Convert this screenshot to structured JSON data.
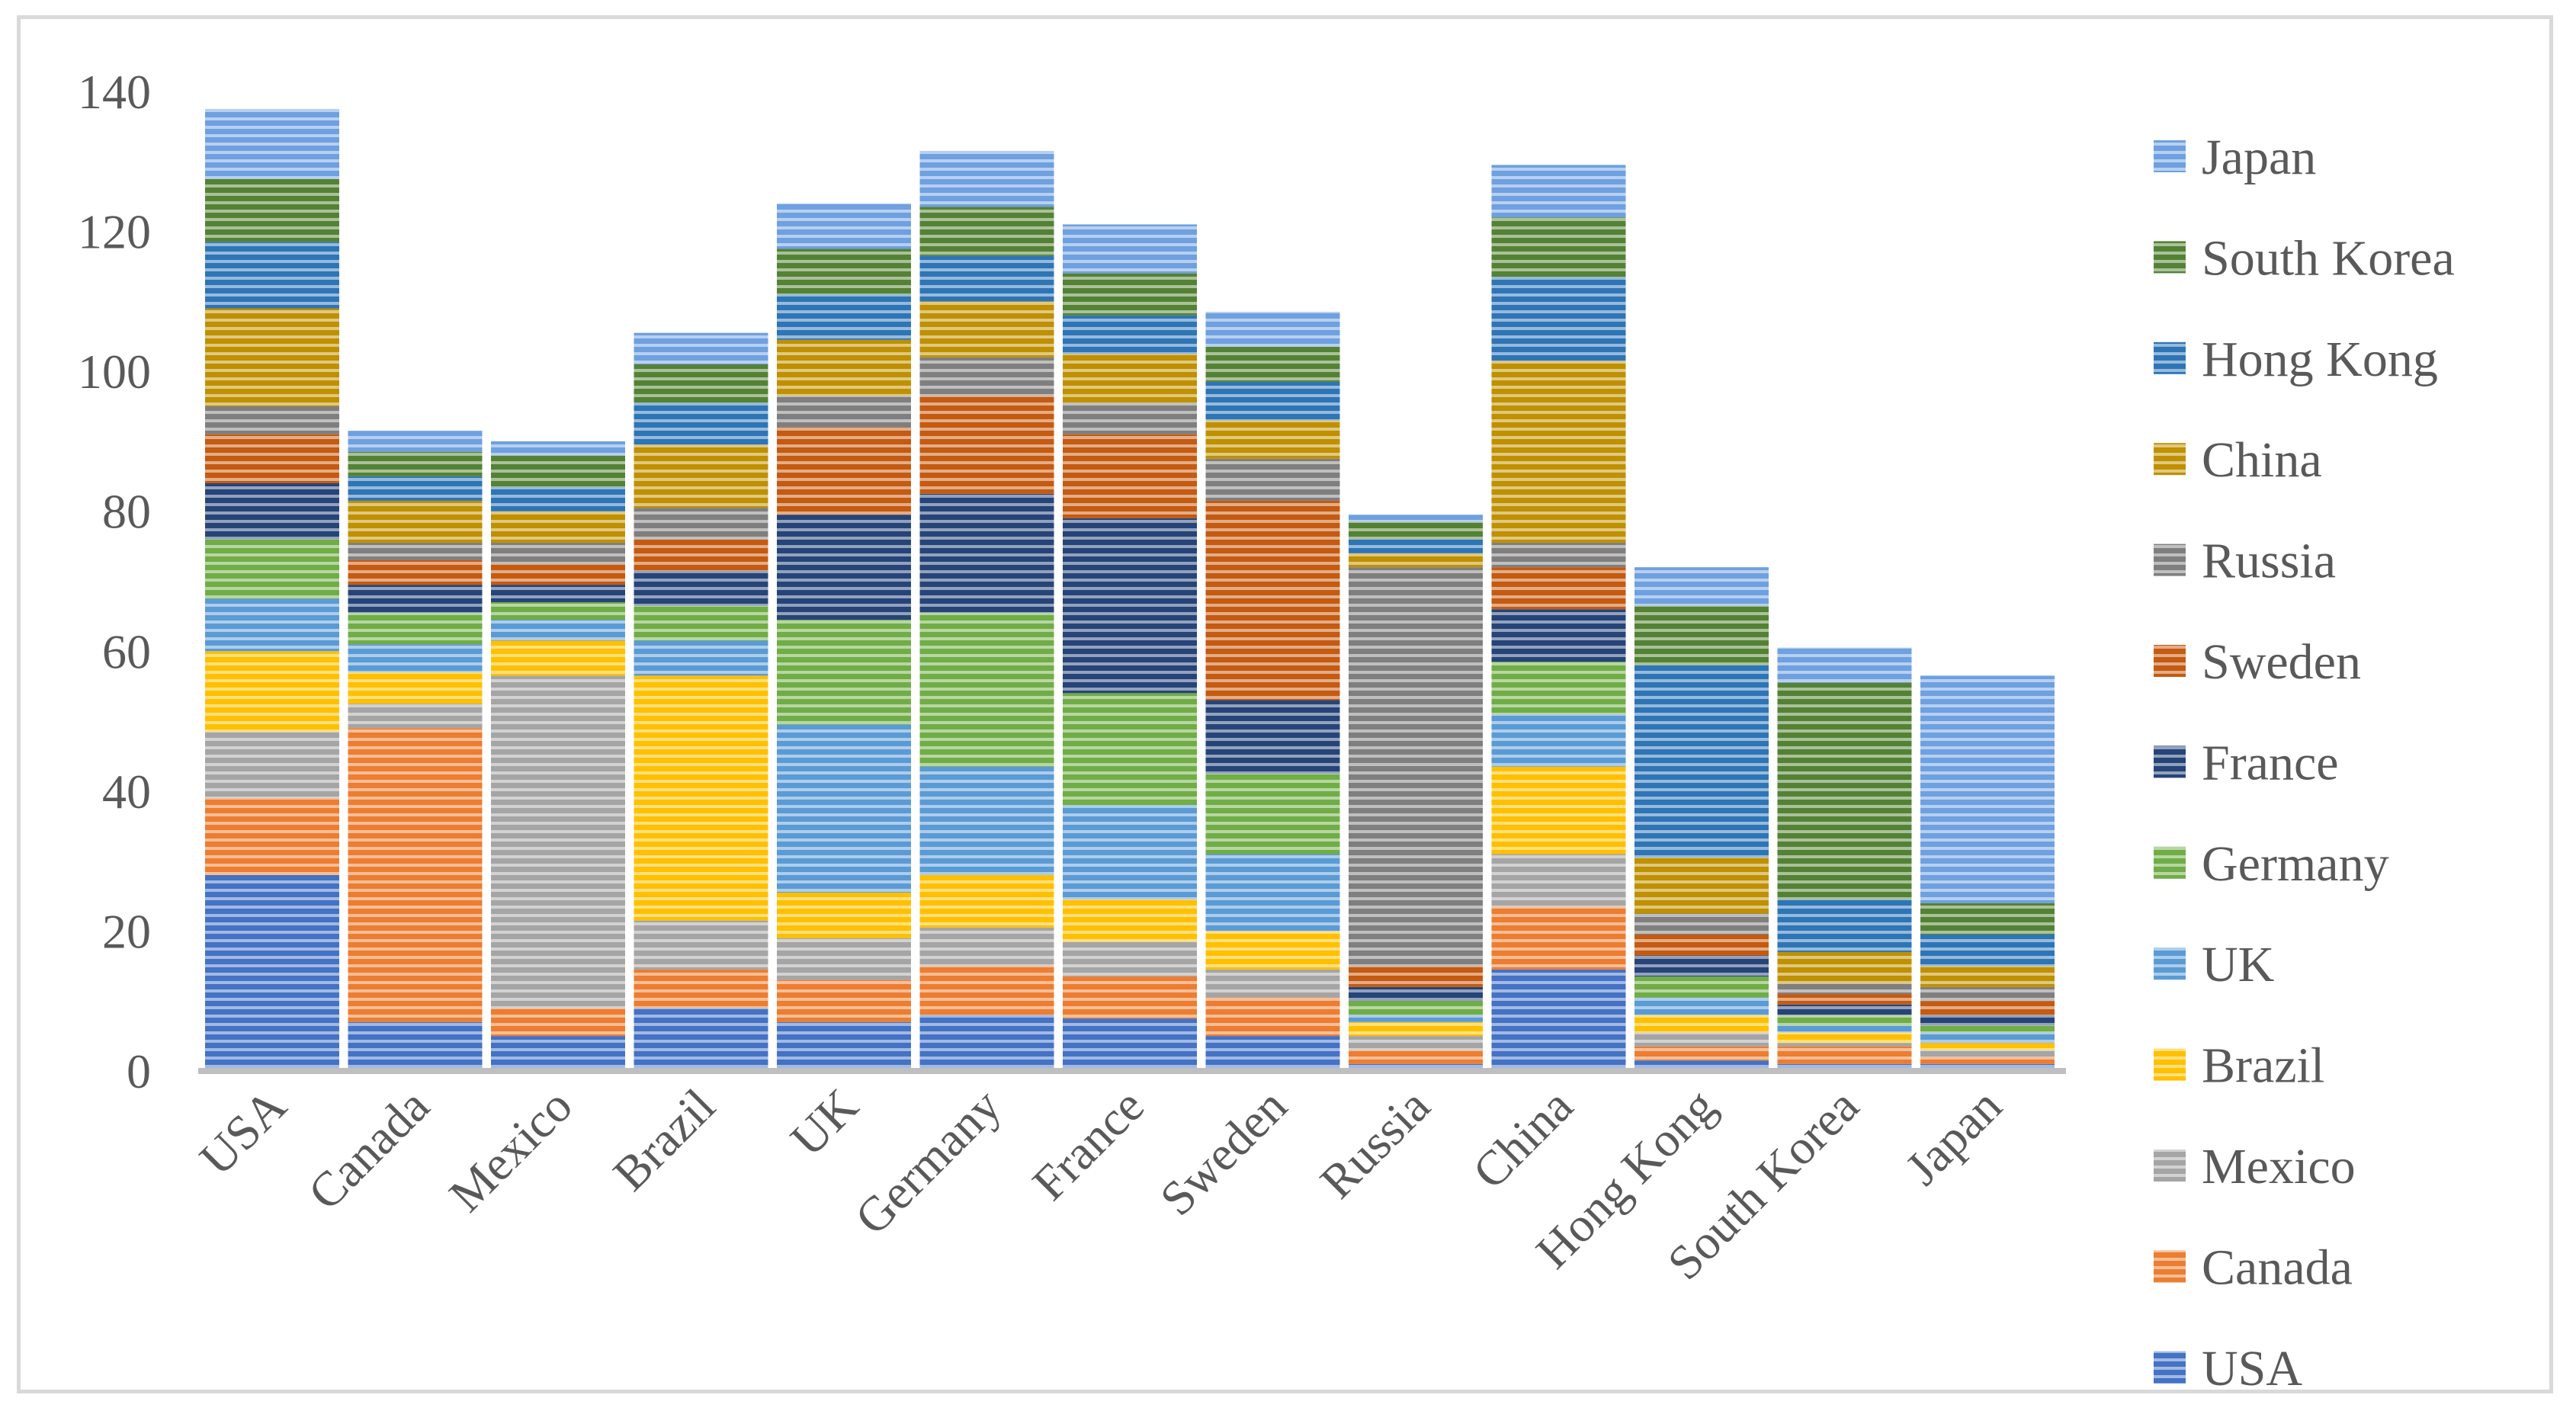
{
  "chart_data": {
    "type": "bar",
    "stacked": true,
    "title": "",
    "xlabel": "",
    "ylabel": "",
    "ylim": [
      0,
      140
    ],
    "yticks": [
      0,
      20,
      40,
      60,
      80,
      100,
      120,
      140
    ],
    "grid": false,
    "legend_position": "right",
    "categories": [
      "USA",
      "Canada",
      "Mexico",
      "Brazil",
      "UK",
      "Germany",
      "France",
      "Sweden",
      "Russia",
      "China",
      "Hong Kong",
      "South Korea",
      "Japan"
    ],
    "series": [
      {
        "name": "USA",
        "color": "#4472c4",
        "values": [
          28,
          7,
          5,
          9,
          7,
          8,
          7.5,
          5,
          1,
          14.5,
          1.5,
          1,
          1
        ]
      },
      {
        "name": "Canada",
        "color": "#ed7d31",
        "values": [
          11,
          42,
          4,
          5.5,
          6,
          7,
          6,
          5.5,
          2,
          9,
          2,
          2.5,
          1
        ]
      },
      {
        "name": "Mexico",
        "color": "#a5a5a5",
        "values": [
          9.5,
          3.5,
          47.5,
          7,
          6,
          5.5,
          5,
          4,
          2,
          7.5,
          2,
          0.5,
          1
        ]
      },
      {
        "name": "Brazil",
        "color": "#ffc000",
        "values": [
          11.5,
          4.5,
          5,
          35,
          6.5,
          7.5,
          6,
          5.5,
          2,
          12.5,
          2.5,
          1.5,
          1
        ]
      },
      {
        "name": "UK",
        "color": "#5b9bd5",
        "values": [
          7.5,
          4,
          3,
          5,
          24,
          15.5,
          13.5,
          11,
          1,
          7.5,
          2.5,
          1,
          1.5
        ]
      },
      {
        "name": "Germany",
        "color": "#70ad47",
        "values": [
          8.5,
          4.5,
          2.5,
          5,
          15,
          22,
          16,
          11.5,
          2,
          7.5,
          3,
          1.5,
          1
        ]
      },
      {
        "name": "France",
        "color": "#264478",
        "values": [
          8,
          4,
          2.5,
          5,
          15,
          17,
          25,
          10.5,
          2,
          7.5,
          3,
          1.5,
          1.5
        ]
      },
      {
        "name": "Sweden",
        "color": "#c55a11",
        "values": [
          7,
          3.5,
          3,
          4.5,
          12.5,
          14,
          12,
          28.5,
          3,
          6,
          3,
          1.5,
          2
        ]
      },
      {
        "name": "Russia",
        "color": "#7f7f7f",
        "values": [
          4,
          2.5,
          3,
          4.5,
          4.5,
          5.5,
          4.5,
          6,
          57,
          3.5,
          3,
          1.5,
          2
        ]
      },
      {
        "name": "China",
        "color": "#bf9000",
        "values": [
          14,
          6,
          4.5,
          9,
          8,
          8,
          7,
          5.5,
          2,
          26,
          8,
          4.5,
          3
        ]
      },
      {
        "name": "Hong Kong",
        "color": "#2e75b6",
        "values": [
          9.5,
          3.5,
          3.5,
          6,
          6.5,
          6.5,
          5.5,
          5.5,
          2,
          12,
          27.5,
          7.5,
          4.5
        ]
      },
      {
        "name": "South Korea",
        "color": "#548235",
        "values": [
          9,
          3.5,
          4.5,
          5.5,
          6.5,
          7,
          6,
          5,
          2.5,
          8.5,
          8.5,
          31,
          4.5
        ]
      },
      {
        "name": "Japan",
        "color": "#6fa0e0",
        "values": [
          10,
          3,
          2,
          4.5,
          6.5,
          8,
          7,
          5,
          1,
          7.5,
          5.5,
          5,
          32.5
        ]
      }
    ]
  }
}
